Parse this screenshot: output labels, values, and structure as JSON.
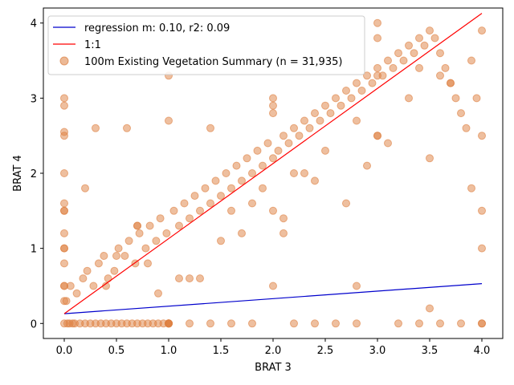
{
  "chart_data": {
    "type": "scatter",
    "xlabel": "BRAT 3",
    "ylabel": "BRAT 4",
    "xlim": [
      -0.2,
      4.2
    ],
    "ylim": [
      -0.2,
      4.2
    ],
    "x_ticks": [
      0.0,
      0.5,
      1.0,
      1.5,
      2.0,
      2.5,
      3.0,
      3.5,
      4.0
    ],
    "x_tick_labels": [
      "0.0",
      "0.5",
      "1.0",
      "1.5",
      "2.0",
      "2.5",
      "3.0",
      "3.5",
      "4.0"
    ],
    "y_ticks": [
      0,
      1,
      2,
      3,
      4
    ],
    "y_tick_labels": [
      "0",
      "1",
      "2",
      "3",
      "4"
    ],
    "grid": false,
    "legend_position": "top-left",
    "series": [
      {
        "name": "regression m: 0.10, r2: 0.09",
        "kind": "line",
        "color": "#0000cc",
        "x": [
          0.0,
          4.0
        ],
        "y": [
          0.13,
          0.53
        ]
      },
      {
        "name": "1:1",
        "kind": "line",
        "color": "#ff0000",
        "x": [
          0.0,
          4.0
        ],
        "y": [
          0.13,
          4.13
        ]
      },
      {
        "name": "100m Existing Vegetation Summary (n = 31,935)",
        "kind": "scatter",
        "color": "#dd7f40",
        "n": 31935,
        "x": [
          0,
          0.05,
          0.1,
          0.2,
          0.3,
          0.4,
          0.5,
          0.6,
          0.7,
          0.8,
          0.9,
          1.0,
          1.0,
          1.0,
          1.0,
          1.0,
          0.95,
          0.85,
          0.75,
          0.65,
          0.55,
          0.45,
          0.35,
          0.25,
          0.15,
          0.08,
          0.03,
          0,
          0,
          0,
          0,
          0,
          0,
          0,
          0,
          0,
          0.02,
          0.06,
          0.12,
          0.18,
          0.22,
          0.28,
          0.33,
          0.38,
          0.42,
          0.48,
          0.52,
          0.58,
          0.62,
          0.68,
          0.72,
          0.78,
          0.82,
          0.88,
          0.92,
          0.98,
          1.05,
          1.1,
          1.15,
          1.2,
          1.25,
          1.3,
          1.35,
          1.4,
          1.45,
          1.5,
          1.55,
          1.6,
          1.65,
          1.7,
          1.75,
          1.8,
          1.85,
          1.9,
          1.95,
          2.0,
          2.0,
          2.0,
          2.0,
          2.05,
          2.1,
          2.15,
          2.2,
          2.25,
          2.3,
          2.35,
          2.4,
          2.45,
          2.5,
          2.55,
          2.6,
          2.65,
          2.7,
          2.75,
          2.8,
          2.85,
          2.9,
          2.95,
          3.0,
          3.0,
          3.0,
          3.05,
          3.1,
          3.15,
          3.2,
          3.25,
          3.3,
          3.35,
          3.4,
          3.45,
          3.5,
          3.55,
          3.6,
          3.65,
          3.7,
          3.75,
          3.8,
          3.85,
          3.9,
          3.95,
          4.0,
          4.0,
          4.0,
          4.0,
          4.0,
          1.2,
          1.4,
          1.6,
          1.8,
          2.2,
          2.4,
          2.6,
          2.8,
          3.2,
          3.4,
          3.6,
          3.8,
          1.3,
          1.7,
          2.1,
          2.3,
          2.7,
          2.9,
          3.1,
          3.3,
          3.7,
          3.9,
          0.3,
          0.5,
          0.7,
          0.9,
          1.1,
          1.5,
          1.9,
          2.5,
          3.5,
          0.6,
          1.2,
          1.8,
          2.4,
          3.0,
          3.6,
          0.4,
          0.8,
          1.6,
          2.2,
          2.8,
          3.4,
          4.0,
          0.2,
          1.0,
          2.0,
          3.0,
          0.7,
          1.4,
          2.1,
          2.8,
          3.5,
          1.0,
          2.0,
          3.0,
          0.0,
          0.0,
          0.0,
          0.0,
          0.0,
          0.0
        ],
        "y": [
          0,
          0,
          0,
          0,
          0,
          0,
          0,
          0,
          0,
          0,
          0,
          0,
          0,
          0,
          0,
          0,
          0,
          0,
          0,
          0,
          0,
          0,
          0,
          0,
          0,
          0,
          0,
          0.5,
          1.0,
          1.5,
          1.6,
          1.2,
          0.8,
          0.3,
          2.9,
          2.55,
          0.3,
          0.5,
          0.4,
          0.6,
          0.7,
          0.5,
          0.8,
          0.9,
          0.6,
          0.7,
          1.0,
          0.9,
          1.1,
          0.8,
          1.2,
          1.0,
          1.3,
          1.1,
          1.4,
          1.2,
          1.5,
          1.3,
          1.6,
          1.4,
          1.7,
          1.5,
          1.8,
          1.6,
          1.9,
          1.7,
          2.0,
          1.8,
          2.1,
          1.9,
          2.2,
          2.0,
          2.3,
          2.1,
          2.4,
          2.2,
          1.5,
          3.0,
          0.5,
          2.3,
          2.5,
          2.4,
          2.6,
          2.5,
          2.7,
          2.6,
          2.8,
          2.7,
          2.9,
          2.8,
          3.0,
          2.9,
          3.1,
          3.0,
          3.2,
          3.1,
          3.3,
          3.2,
          3.4,
          2.5,
          3.8,
          3.3,
          3.5,
          3.4,
          3.6,
          3.5,
          3.7,
          3.6,
          3.8,
          3.7,
          3.9,
          3.8,
          3.6,
          3.4,
          3.2,
          3.0,
          2.8,
          2.6,
          3.5,
          3.0,
          2.5,
          1.5,
          1.0,
          0,
          0,
          0,
          0,
          0,
          0,
          0,
          0,
          0,
          0,
          0,
          0,
          0,
          0,
          0.6,
          1.2,
          1.4,
          2.0,
          1.6,
          2.1,
          2.4,
          3.0,
          3.2,
          1.8,
          2.6,
          0.9,
          1.3,
          0.4,
          0.6,
          1.1,
          1.8,
          2.3,
          0.2,
          2.6,
          0.6,
          1.6,
          1.9,
          2.5,
          3.3,
          0.5,
          0.8,
          1.5,
          2.0,
          2.7,
          3.4,
          3.9,
          1.8,
          3.3,
          2.8,
          4.0,
          1.3,
          2.6,
          1.2,
          0.5,
          2.2,
          2.7,
          2.9,
          3.3,
          0.5,
          1.0,
          1.5,
          2.0,
          2.5,
          3.0
        ]
      }
    ]
  }
}
